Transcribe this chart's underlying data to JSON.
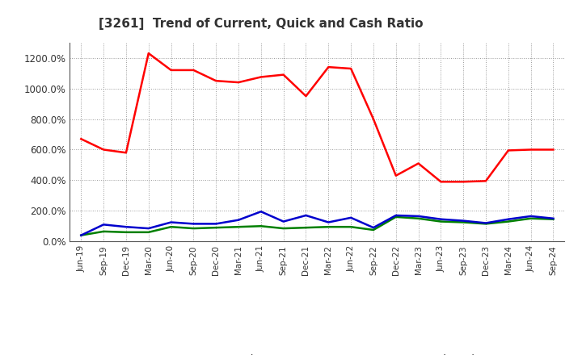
{
  "title": "[3261]  Trend of Current, Quick and Cash Ratio",
  "x_labels": [
    "Jun-19",
    "Sep-19",
    "Dec-19",
    "Mar-20",
    "Jun-20",
    "Sep-20",
    "Dec-20",
    "Mar-21",
    "Jun-21",
    "Sep-21",
    "Dec-21",
    "Mar-22",
    "Jun-22",
    "Sep-22",
    "Dec-22",
    "Mar-23",
    "Jun-23",
    "Sep-23",
    "Dec-23",
    "Mar-24",
    "Jun-24",
    "Sep-24"
  ],
  "current_ratio": [
    670,
    600,
    580,
    1230,
    1120,
    1120,
    1050,
    1040,
    1075,
    1090,
    950,
    1140,
    1130,
    800,
    430,
    510,
    390,
    390,
    395,
    595,
    600,
    600
  ],
  "quick_ratio": [
    40,
    65,
    60,
    60,
    95,
    85,
    90,
    95,
    100,
    85,
    90,
    95,
    95,
    75,
    160,
    150,
    130,
    125,
    115,
    130,
    150,
    145
  ],
  "cash_ratio": [
    40,
    110,
    95,
    85,
    125,
    115,
    115,
    140,
    195,
    130,
    170,
    125,
    155,
    90,
    170,
    165,
    145,
    135,
    120,
    145,
    165,
    150
  ],
  "current_color": "#FF0000",
  "quick_color": "#008000",
  "cash_color": "#0000CD",
  "bg_color": "#FFFFFF",
  "plot_bg_color": "#FFFFFF",
  "grid_color": "#999999",
  "ylim": [
    0,
    1300
  ],
  "yticks": [
    0,
    200,
    400,
    600,
    800,
    1000,
    1200
  ],
  "legend_labels": [
    "Current Ratio",
    "Quick Ratio",
    "Cash Ratio"
  ]
}
